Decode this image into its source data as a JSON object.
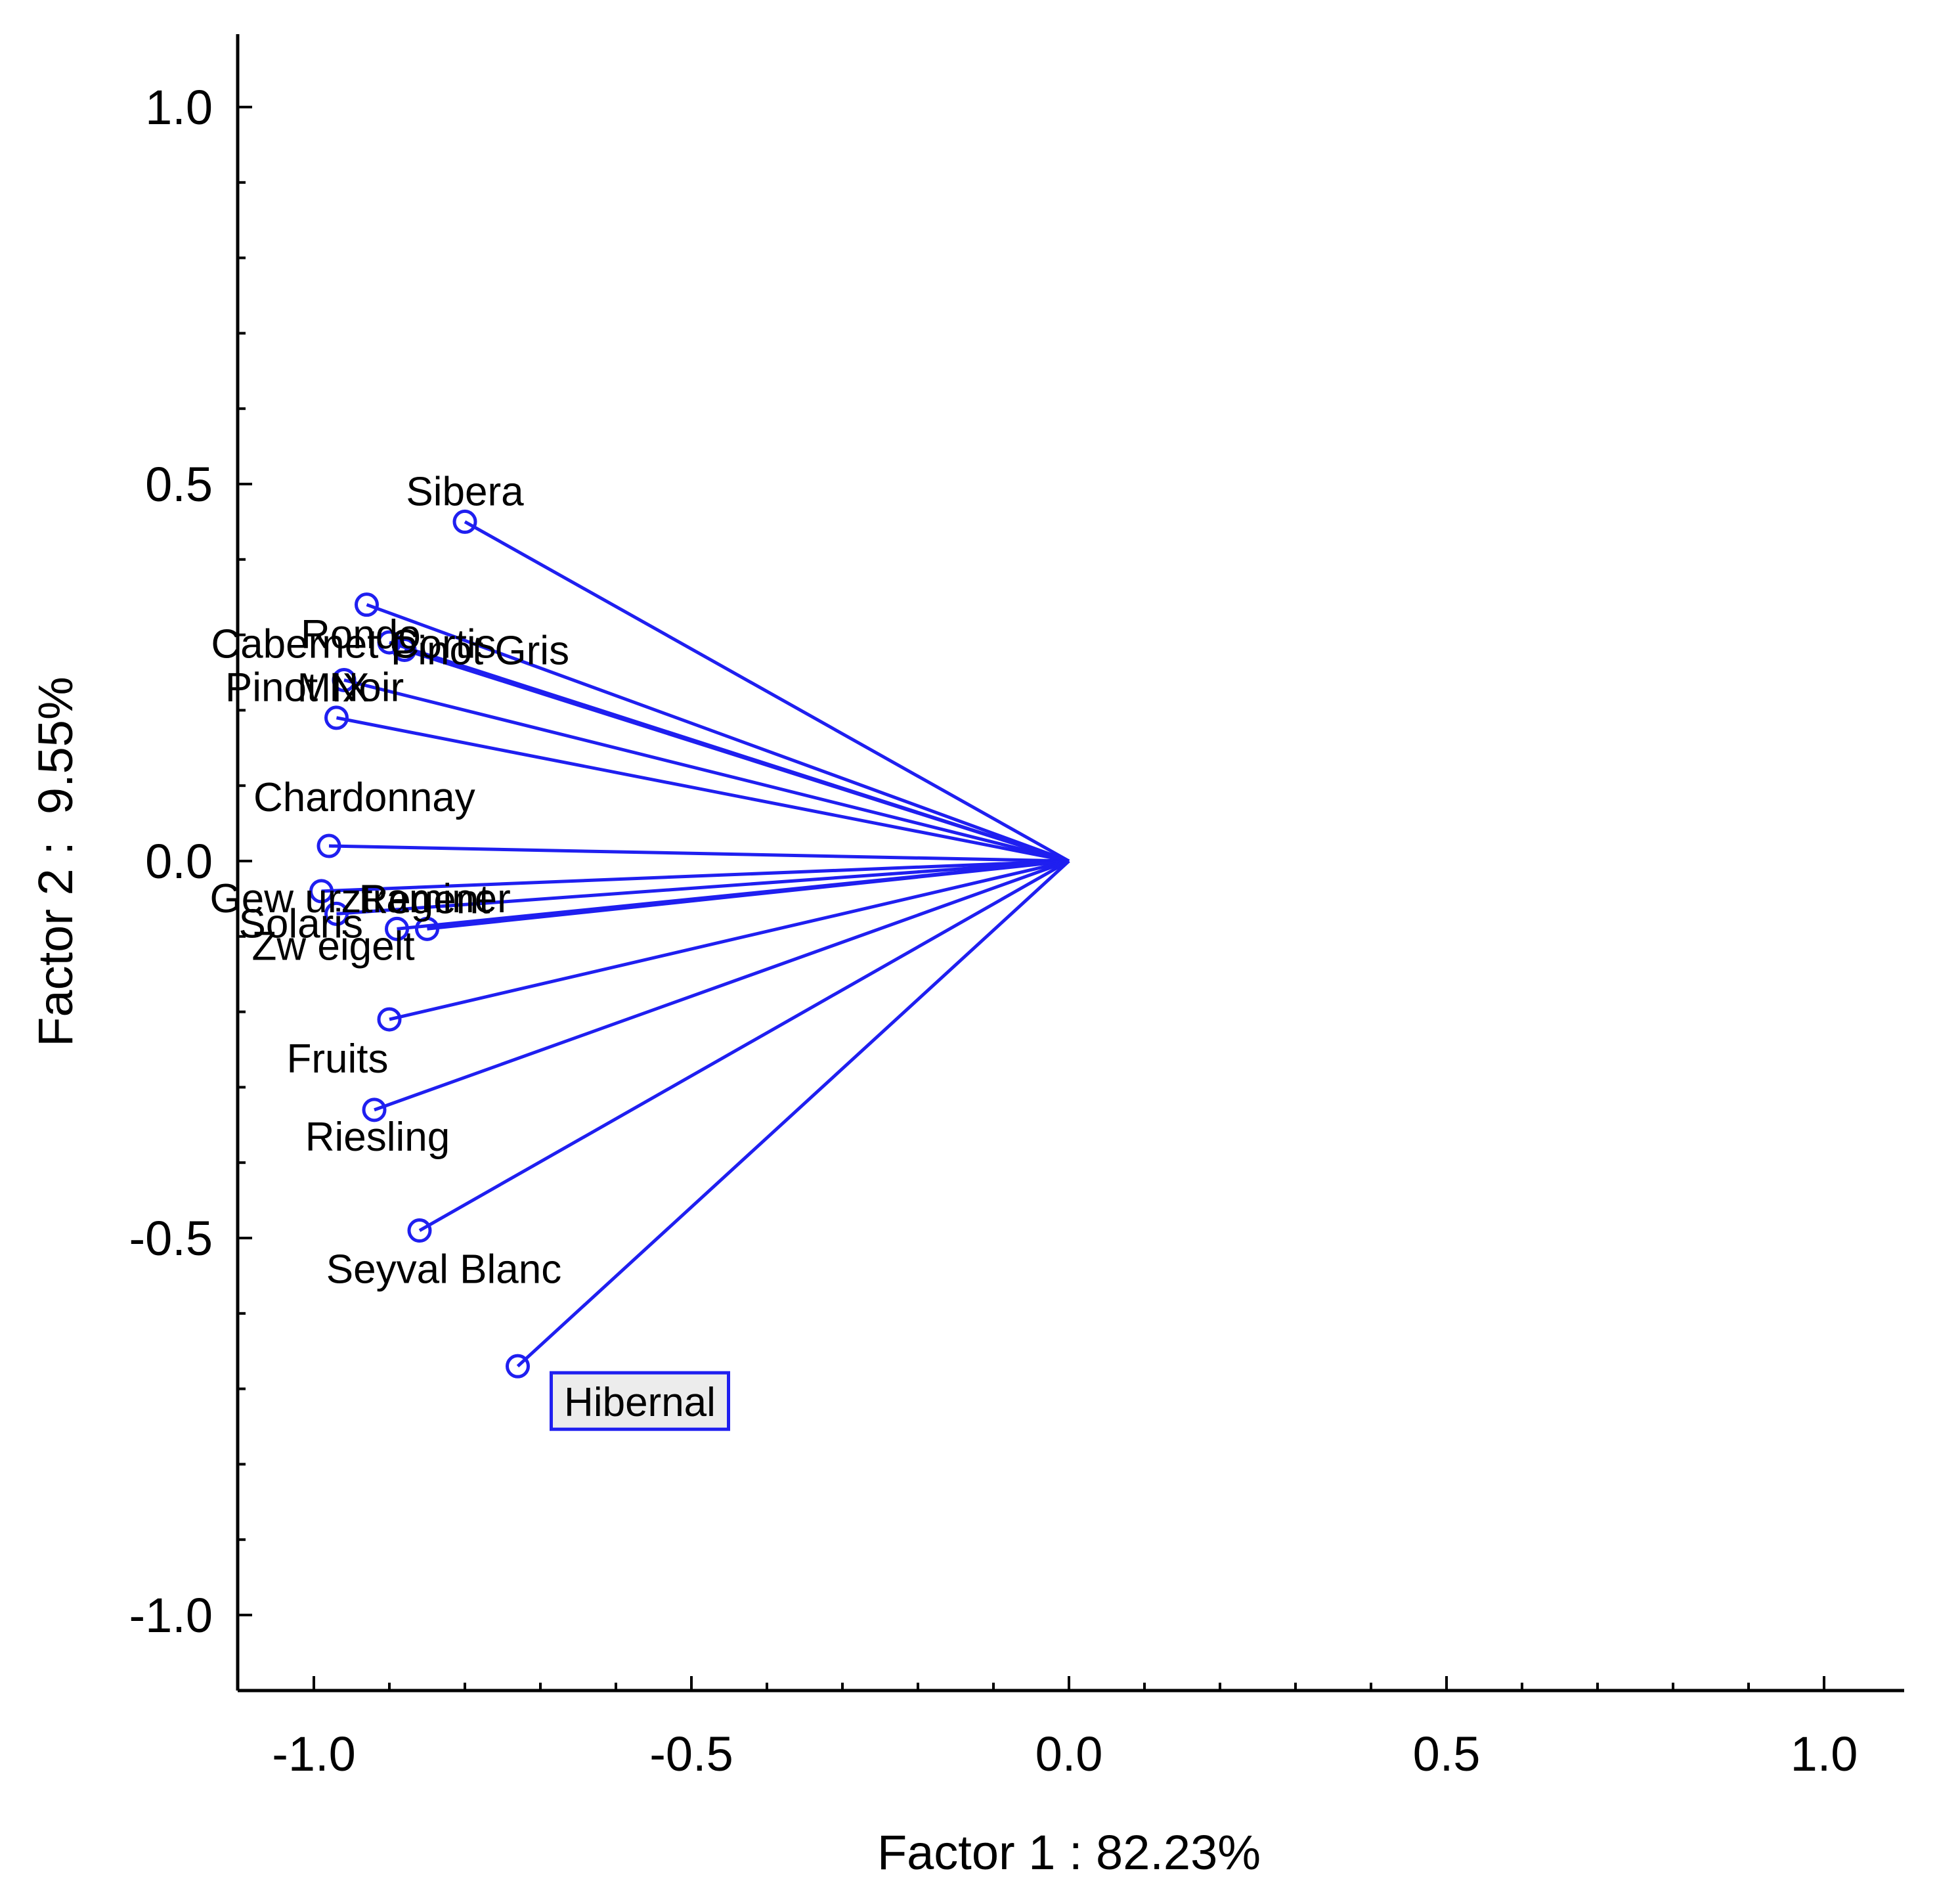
{
  "chart_data": {
    "type": "scatter",
    "subtype": "factor-loadings-vector-plot",
    "title": "",
    "xlabel": "Factor 1 : 82.23%",
    "ylabel": "Factor 2 :  9.55%",
    "xlim": [
      -1.1,
      1.1
    ],
    "ylim": [
      -1.1,
      1.1
    ],
    "x_ticks": [
      -1.0,
      -0.5,
      0.0,
      0.5,
      1.0
    ],
    "y_ticks": [
      1.0,
      0.5,
      0.0,
      -0.5,
      -1.0
    ],
    "x_tick_labels": [
      "-1.0",
      "-0.5",
      "0.0",
      "0.5",
      "1.0"
    ],
    "y_tick_labels": [
      "1.0",
      "0.5",
      "0.0",
      "-0.5",
      "-1.0"
    ],
    "origin": [
      0.0,
      0.0
    ],
    "series_color": "#1f1ff0",
    "highlighted": "Hibernal",
    "points": [
      {
        "label": "Sibera",
        "x": -0.8,
        "y": 0.45
      },
      {
        "label": "Cabernet Cortis",
        "x": -0.93,
        "y": 0.34
      },
      {
        "label": "Rondo",
        "x": -0.9,
        "y": 0.29
      },
      {
        "label": "Pinot Gris",
        "x": -0.88,
        "y": 0.28
      },
      {
        "label": "Pinot Noir",
        "x": -0.96,
        "y": 0.24
      },
      {
        "label": "MIX",
        "x": -0.97,
        "y": 0.19
      },
      {
        "label": "Chardonnay",
        "x": -0.98,
        "y": 0.02
      },
      {
        "label": "Gewürztraminer",
        "x": -0.99,
        "y": -0.04
      },
      {
        "label": "Solaris",
        "x": -0.97,
        "y": -0.07
      },
      {
        "label": "Regent",
        "x": -0.85,
        "y": -0.09
      },
      {
        "label": "Zweigelt",
        "x": -0.89,
        "y": -0.09
      },
      {
        "label": "Fruits",
        "x": -0.9,
        "y": -0.21
      },
      {
        "label": "Riesling",
        "x": -0.92,
        "y": -0.33
      },
      {
        "label": "Seyval Blanc",
        "x": -0.86,
        "y": -0.49
      },
      {
        "label": "Hibernal",
        "x": -0.73,
        "y": -0.67
      }
    ],
    "label_display": {
      "Sibera": "Sibera",
      "Cabernet Cortis": "Cabernet Cortis",
      "Rondo": "Rondo",
      "Pinot Gris": "Pinot Gris",
      "Pinot Noir": "Pinot Noir",
      "MIX": "MIX",
      "Chardonnay": "Chardonnay",
      "Gewürztraminer": "Gew urztraminer",
      "Solaris": "Solaris",
      "Regent": "Regent",
      "Zweigelt": "Zw eigelt",
      "Fruits": "Fruits",
      "Riesling": "Riesling",
      "Seyval Blanc": "Seyval Blanc",
      "Hibernal": "Hibernal"
    }
  }
}
